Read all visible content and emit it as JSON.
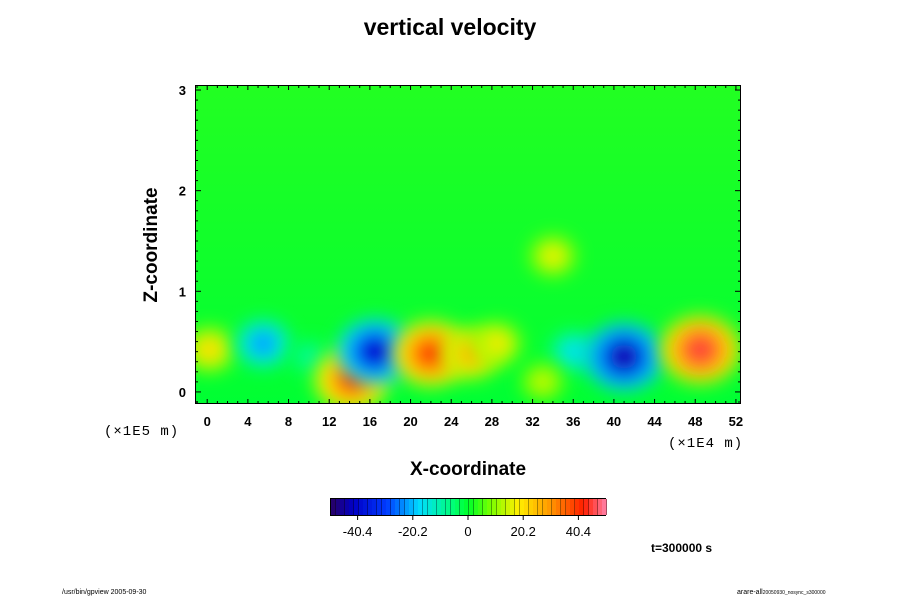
{
  "chart_data": {
    "type": "heatmap",
    "title": "vertical velocity",
    "xlabel": "X-coordinate",
    "ylabel": "Z-coordinate",
    "x_ticks": [
      "0",
      "4",
      "8",
      "12",
      "16",
      "20",
      "24",
      "28",
      "32",
      "36",
      "40",
      "44",
      "48",
      "52"
    ],
    "x_tick_values": [
      0,
      4,
      8,
      12,
      16,
      20,
      24,
      28,
      32,
      36,
      40,
      44,
      48,
      52
    ],
    "y_ticks": [
      "0",
      "1",
      "2",
      "3"
    ],
    "y_tick_values": [
      0,
      1,
      2,
      3
    ],
    "xlim": [
      -1.2,
      52.5
    ],
    "ylim": [
      -0.12,
      3.05
    ],
    "x_scale_label": "(×1E4 m)",
    "y_scale_label": "(×1E5 m)",
    "colorbar": {
      "ticks": [
        "-40.4",
        "-20.2",
        "0",
        "20.2",
        "40.4"
      ],
      "tick_values": [
        -40.4,
        -20.2,
        0,
        20.2,
        40.4
      ],
      "range": [
        -50.5,
        50.5
      ]
    },
    "time_label": "t=300000 s",
    "features": [
      {
        "x": 0.2,
        "z": 0.42,
        "value": 22
      },
      {
        "x": 5.5,
        "z": 0.48,
        "value": -25
      },
      {
        "x": 10,
        "z": 0.35,
        "value": -10
      },
      {
        "x": 14.2,
        "z": 0.12,
        "value": 40
      },
      {
        "x": 16.5,
        "z": 0.4,
        "value": -42
      },
      {
        "x": 22,
        "z": 0.38,
        "value": 42
      },
      {
        "x": 26,
        "z": 0.38,
        "value": 28
      },
      {
        "x": 28.5,
        "z": 0.48,
        "value": 20
      },
      {
        "x": 34,
        "z": 1.35,
        "value": 18
      },
      {
        "x": 36,
        "z": 0.4,
        "value": -18
      },
      {
        "x": 41,
        "z": 0.35,
        "value": -45
      },
      {
        "x": 48.5,
        "z": 0.42,
        "value": 45
      },
      {
        "x": 33,
        "z": 0.1,
        "value": 15
      }
    ]
  },
  "footer": {
    "left": "/usr/bin/gpview 2005-09-30",
    "right_main": "arare-all",
    "right_sub": "20050930_nosync_s300000"
  }
}
